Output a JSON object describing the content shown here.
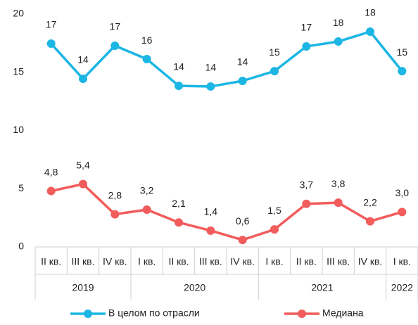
{
  "chart_data": {
    "type": "line",
    "categories": [
      "II кв.",
      "III кв.",
      "IV кв.",
      "I кв.",
      "II кв.",
      "III кв.",
      "IV кв.",
      "I кв.",
      "II кв.",
      "III кв.",
      "IV кв.",
      "I кв."
    ],
    "category_groups": [
      {
        "label": "2019",
        "count": 3
      },
      {
        "label": "2020",
        "count": 4
      },
      {
        "label": "2021",
        "count": 4
      },
      {
        "label": "2022",
        "count": 1
      }
    ],
    "series": [
      {
        "name": "В целом по отрасли",
        "color": "#1cb6e4",
        "values": [
          17.46,
          14.44,
          17.28,
          16.13,
          13.84,
          13.78,
          14.26,
          15.1,
          17.22,
          17.64,
          18.49,
          15.1
        ],
        "value_labels": [
          "17",
          "14",
          "17",
          "16",
          "14",
          "14",
          "14",
          "15",
          "17",
          "18",
          "18",
          "15"
        ]
      },
      {
        "name": "Медиана",
        "color": "#f25c5c",
        "values": [
          4.8,
          5.4,
          2.8,
          3.2,
          2.1,
          1.4,
          0.6,
          1.5,
          3.7,
          3.8,
          2.2,
          3.0
        ],
        "value_labels": [
          "4,8",
          "5,4",
          "2,8",
          "3,2",
          "2,1",
          "1,4",
          "0,6",
          "1,5",
          "3,7",
          "3,8",
          "2,2",
          "3,0"
        ]
      }
    ],
    "ylim": [
      0,
      20
    ],
    "yticks": [
      0,
      5,
      10,
      15,
      20
    ],
    "grid": false,
    "legend": "bottom"
  }
}
